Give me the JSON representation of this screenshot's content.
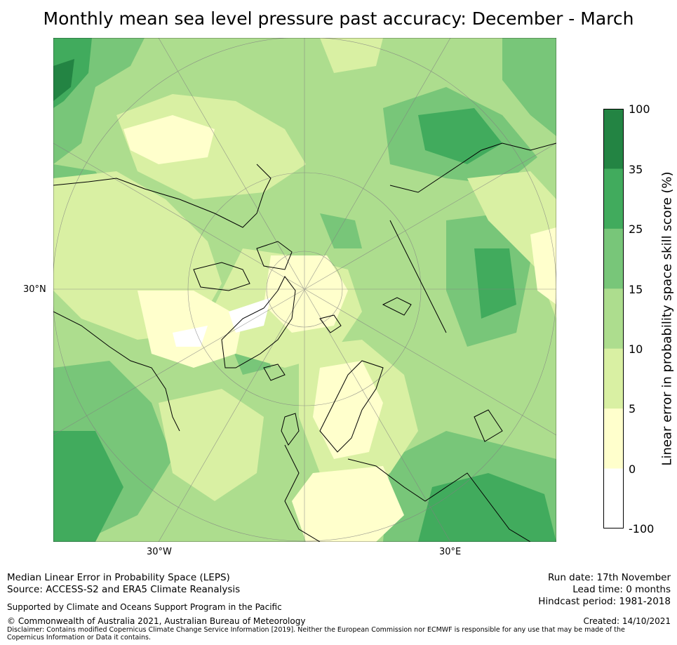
{
  "title": "Monthly mean sea level pressure past accuracy: December - March",
  "map": {
    "latitude_label": "30°N",
    "longitude_labels": [
      "30°W",
      "30°E"
    ]
  },
  "colorbar": {
    "label": "Linear error in probability space skill score (%)",
    "ticks": [
      "100",
      "35",
      "25",
      "15",
      "10",
      "5",
      "0",
      "-100"
    ],
    "bands": [
      {
        "range": "35 to 100",
        "color": "#238443"
      },
      {
        "range": "25 to 35",
        "color": "#41ab5d"
      },
      {
        "range": "15 to 25",
        "color": "#78c679"
      },
      {
        "range": "10 to 15",
        "color": "#addd8e"
      },
      {
        "range": "5 to 10",
        "color": "#d9f0a3"
      },
      {
        "range": "0 to 5",
        "color": "#ffffcc"
      },
      {
        "range": "-100 to 0",
        "color": "#ffffff"
      }
    ]
  },
  "footer": {
    "line1": "Median Linear Error in Probability Space (LEPS)",
    "line2": "Source: ACCESS-S2 and ERA5 Climate Reanalysis",
    "support": "Supported by Climate and Oceans Support Program in the Pacific",
    "copyright": "© Commonwealth of Australia 2021, Australian Bureau of Meteorology",
    "disclaimer": "Disclaimer: Contains modified Copernicus Climate Change Service Information [2019]. Neither the European Commission nor ECMWF is responsible for any use that may be made of the Copernicus Information or Data it contains.",
    "run_date": "Run date: 17th November",
    "lead_time": "Lead time: 0 months",
    "hindcast": "Hindcast period: 1981-2018",
    "created": "Created: 14/10/2021"
  }
}
